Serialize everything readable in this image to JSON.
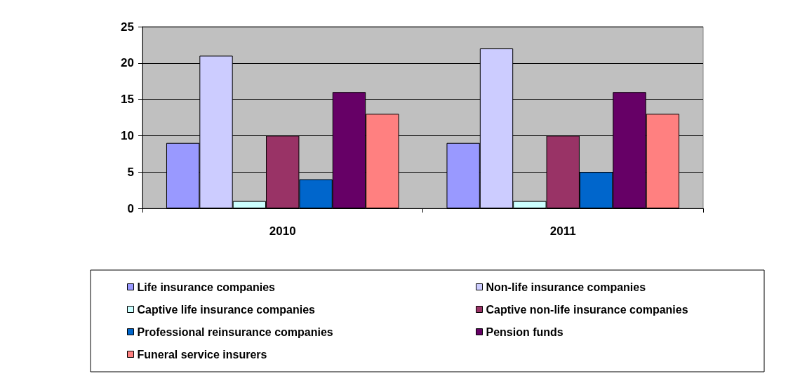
{
  "chart_data": {
    "type": "bar",
    "categories": [
      "2010",
      "2011"
    ],
    "series": [
      {
        "name": "Life insurance companies",
        "color": "#9999ff",
        "values": [
          9,
          9
        ]
      },
      {
        "name": "Non-life insurance companies",
        "color": "#ccccff",
        "values": [
          21,
          22
        ]
      },
      {
        "name": "Captive life insurance companies",
        "color": "#ccffff",
        "values": [
          1,
          1
        ]
      },
      {
        "name": "Captive non-life insurance companies",
        "color": "#993366",
        "values": [
          10,
          10
        ]
      },
      {
        "name": "Professional reinsurance companies",
        "color": "#0066cc",
        "values": [
          4,
          5
        ]
      },
      {
        "name": "Pension funds",
        "color": "#660066",
        "values": [
          16,
          16
        ]
      },
      {
        "name": "Funeral service insurers",
        "color": "#ff8080",
        "values": [
          13,
          13
        ]
      }
    ],
    "ylim": [
      0,
      25
    ],
    "yticks": [
      0,
      5,
      10,
      15,
      20,
      25
    ],
    "grid": "y",
    "legend": "bottom"
  }
}
